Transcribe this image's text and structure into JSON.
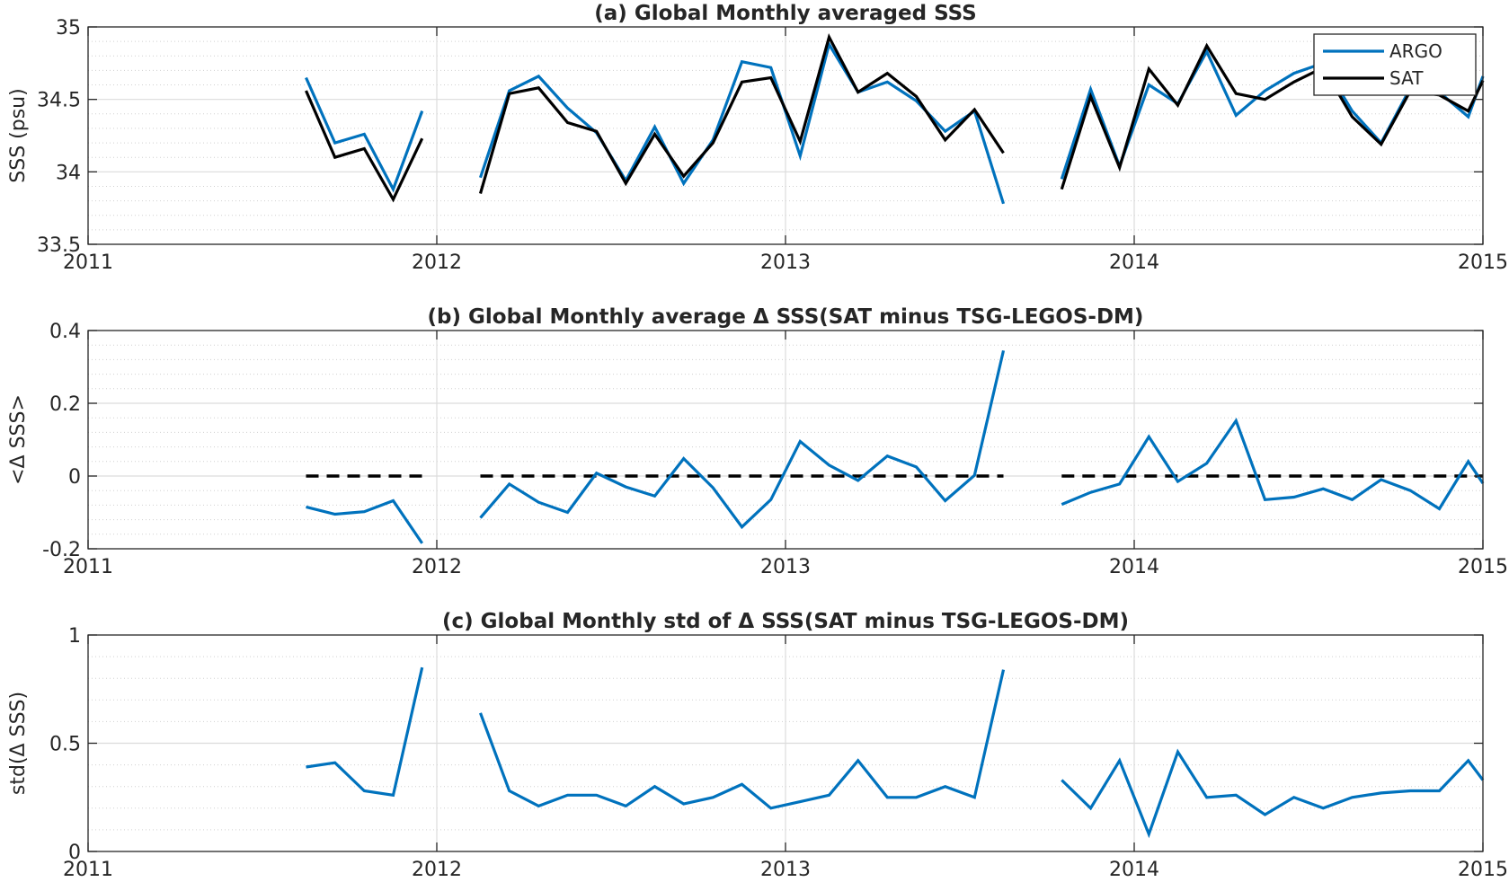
{
  "colors": {
    "argo": "#0072BD",
    "sat": "#000000",
    "grid": "#dcdcdc",
    "axis": "#262626"
  },
  "chart_data": [
    {
      "type": "line",
      "title": "(a) Global Monthly averaged SSS",
      "xlabel": "",
      "ylabel": "SSS (psu)",
      "xlim": [
        2011,
        2015
      ],
      "ylim": [
        33.5,
        35
      ],
      "xticks": [
        2011,
        2012,
        2013,
        2014,
        2015
      ],
      "xtick_labels": [
        "2011",
        "2012",
        "2013",
        "2014",
        "2015"
      ],
      "yticks": [
        33.5,
        34,
        34.5,
        35
      ],
      "ytick_labels": [
        "33.5",
        "34",
        "34.5",
        "35"
      ],
      "grid": true,
      "legend_position": "top-right",
      "series": [
        {
          "name": "ARGO",
          "color": "#0072BD",
          "x": [
            2011.625,
            2011.708,
            2011.792,
            2011.875,
            2011.958,
            null,
            2012.125,
            2012.208,
            2012.292,
            2012.375,
            2012.458,
            2012.542,
            2012.625,
            2012.708,
            2012.792,
            2012.875,
            2012.958,
            2013.042,
            2013.125,
            2013.208,
            2013.292,
            2013.375,
            2013.458,
            2013.542,
            2013.625,
            null,
            2013.792,
            2013.875,
            2013.958,
            2014.042,
            2014.125,
            2014.208,
            2014.292,
            2014.375,
            2014.458,
            2014.542,
            2014.625,
            2014.708,
            2014.792,
            2014.875,
            2014.958,
            2015.0
          ],
          "values": [
            34.65,
            34.2,
            34.26,
            33.88,
            34.42,
            null,
            33.96,
            34.56,
            34.66,
            34.44,
            34.27,
            33.94,
            34.31,
            33.92,
            34.22,
            34.76,
            34.72,
            34.11,
            34.88,
            34.55,
            34.62,
            34.49,
            34.28,
            34.42,
            33.78,
            null,
            33.95,
            34.57,
            34.04,
            34.6,
            34.47,
            34.83,
            34.39,
            34.56,
            34.68,
            34.75,
            34.42,
            34.2,
            34.58,
            34.55,
            34.38,
            34.66
          ]
        },
        {
          "name": "SAT",
          "color": "#000000",
          "x": [
            2011.625,
            2011.708,
            2011.792,
            2011.875,
            2011.958,
            null,
            2012.125,
            2012.208,
            2012.292,
            2012.375,
            2012.458,
            2012.542,
            2012.625,
            2012.708,
            2012.792,
            2012.875,
            2012.958,
            2013.042,
            2013.125,
            2013.208,
            2013.292,
            2013.375,
            2013.458,
            2013.542,
            2013.625,
            null,
            2013.792,
            2013.875,
            2013.958,
            2014.042,
            2014.125,
            2014.208,
            2014.292,
            2014.375,
            2014.458,
            2014.542,
            2014.625,
            2014.708,
            2014.792,
            2014.875,
            2014.958,
            2015.0
          ],
          "values": [
            34.56,
            34.1,
            34.16,
            33.81,
            34.23,
            null,
            33.85,
            34.54,
            34.58,
            34.34,
            34.28,
            33.92,
            34.26,
            33.97,
            34.2,
            34.62,
            34.65,
            34.21,
            34.93,
            34.55,
            34.68,
            34.52,
            34.22,
            34.43,
            34.13,
            null,
            33.88,
            34.52,
            34.03,
            34.71,
            34.46,
            34.87,
            34.54,
            34.5,
            34.62,
            34.72,
            34.38,
            34.19,
            34.56,
            34.53,
            34.42,
            34.63
          ]
        }
      ]
    },
    {
      "type": "line",
      "title": "(b) Global Monthly average Δ SSS(SAT minus TSG-LEGOS-DM)",
      "xlabel": "",
      "ylabel": "<Δ SSS>",
      "xlim": [
        2011,
        2015
      ],
      "ylim": [
        -0.2,
        0.4
      ],
      "xticks": [
        2011,
        2012,
        2013,
        2014,
        2015
      ],
      "xtick_labels": [
        "2011",
        "2012",
        "2013",
        "2014",
        "2015"
      ],
      "yticks": [
        -0.2,
        0,
        0.2,
        0.4
      ],
      "ytick_labels": [
        "-0.2",
        "0",
        "0.2",
        "0.4"
      ],
      "grid": true,
      "reference_segments": [
        {
          "x": [
            2011.625,
            2011.958
          ],
          "y": 0
        },
        {
          "x": [
            2012.125,
            2013.625
          ],
          "y": 0
        },
        {
          "x": [
            2013.792,
            2015.0
          ],
          "y": 0
        }
      ],
      "series": [
        {
          "color": "#0072BD",
          "x": [
            2011.625,
            2011.708,
            2011.792,
            2011.875,
            2011.958,
            null,
            2012.125,
            2012.208,
            2012.292,
            2012.375,
            2012.458,
            2012.542,
            2012.625,
            2012.708,
            2012.792,
            2012.875,
            2012.958,
            2013.042,
            2013.125,
            2013.208,
            2013.292,
            2013.375,
            2013.458,
            2013.542,
            2013.625,
            null,
            2013.792,
            2013.875,
            2013.958,
            2014.042,
            2014.125,
            2014.208,
            2014.292,
            2014.375,
            2014.458,
            2014.542,
            2014.625,
            2014.708,
            2014.792,
            2014.875,
            2014.958,
            2015.0
          ],
          "values": [
            -0.085,
            -0.105,
            -0.098,
            -0.068,
            -0.185,
            null,
            -0.115,
            -0.022,
            -0.072,
            -0.1,
            0.008,
            -0.03,
            -0.055,
            0.048,
            -0.032,
            -0.14,
            -0.065,
            0.095,
            0.03,
            -0.012,
            0.055,
            0.025,
            -0.068,
            0.002,
            0.345,
            null,
            -0.078,
            -0.045,
            -0.022,
            0.108,
            -0.015,
            0.035,
            0.152,
            -0.065,
            -0.058,
            -0.035,
            -0.065,
            -0.01,
            -0.04,
            -0.09,
            0.04,
            -0.02
          ]
        }
      ]
    },
    {
      "type": "line",
      "title": "(c) Global Monthly std of Δ SSS(SAT minus TSG-LEGOS-DM)",
      "xlabel": "",
      "ylabel": "std(Δ SSS)",
      "xlim": [
        2011,
        2015
      ],
      "ylim": [
        0,
        1
      ],
      "xticks": [
        2011,
        2012,
        2013,
        2014,
        2015
      ],
      "xtick_labels": [
        "2011",
        "2012",
        "2013",
        "2014",
        "2015"
      ],
      "yticks": [
        0,
        0.5,
        1
      ],
      "ytick_labels": [
        "0",
        "0.5",
        "1"
      ],
      "grid": true,
      "series": [
        {
          "color": "#0072BD",
          "x": [
            2011.625,
            2011.708,
            2011.792,
            2011.875,
            2011.958,
            null,
            2012.125,
            2012.208,
            2012.292,
            2012.375,
            2012.458,
            2012.542,
            2012.625,
            2012.708,
            2012.792,
            2012.875,
            2012.958,
            2013.042,
            2013.125,
            2013.208,
            2013.292,
            2013.375,
            2013.458,
            2013.542,
            2013.625,
            null,
            2013.792,
            2013.875,
            2013.958,
            2014.042,
            2014.125,
            2014.208,
            2014.292,
            2014.375,
            2014.458,
            2014.542,
            2014.625,
            2014.708,
            2014.792,
            2014.875,
            2014.958,
            2015.0
          ],
          "values": [
            0.39,
            0.41,
            0.28,
            0.26,
            0.85,
            null,
            0.64,
            0.28,
            0.21,
            0.26,
            0.26,
            0.21,
            0.3,
            0.22,
            0.25,
            0.31,
            0.2,
            0.23,
            0.26,
            0.42,
            0.25,
            0.25,
            0.3,
            0.25,
            0.84,
            null,
            0.33,
            0.2,
            0.42,
            0.08,
            0.46,
            0.25,
            0.26,
            0.17,
            0.25,
            0.2,
            0.25,
            0.27,
            0.28,
            0.28,
            0.42,
            0.33
          ]
        }
      ]
    }
  ]
}
